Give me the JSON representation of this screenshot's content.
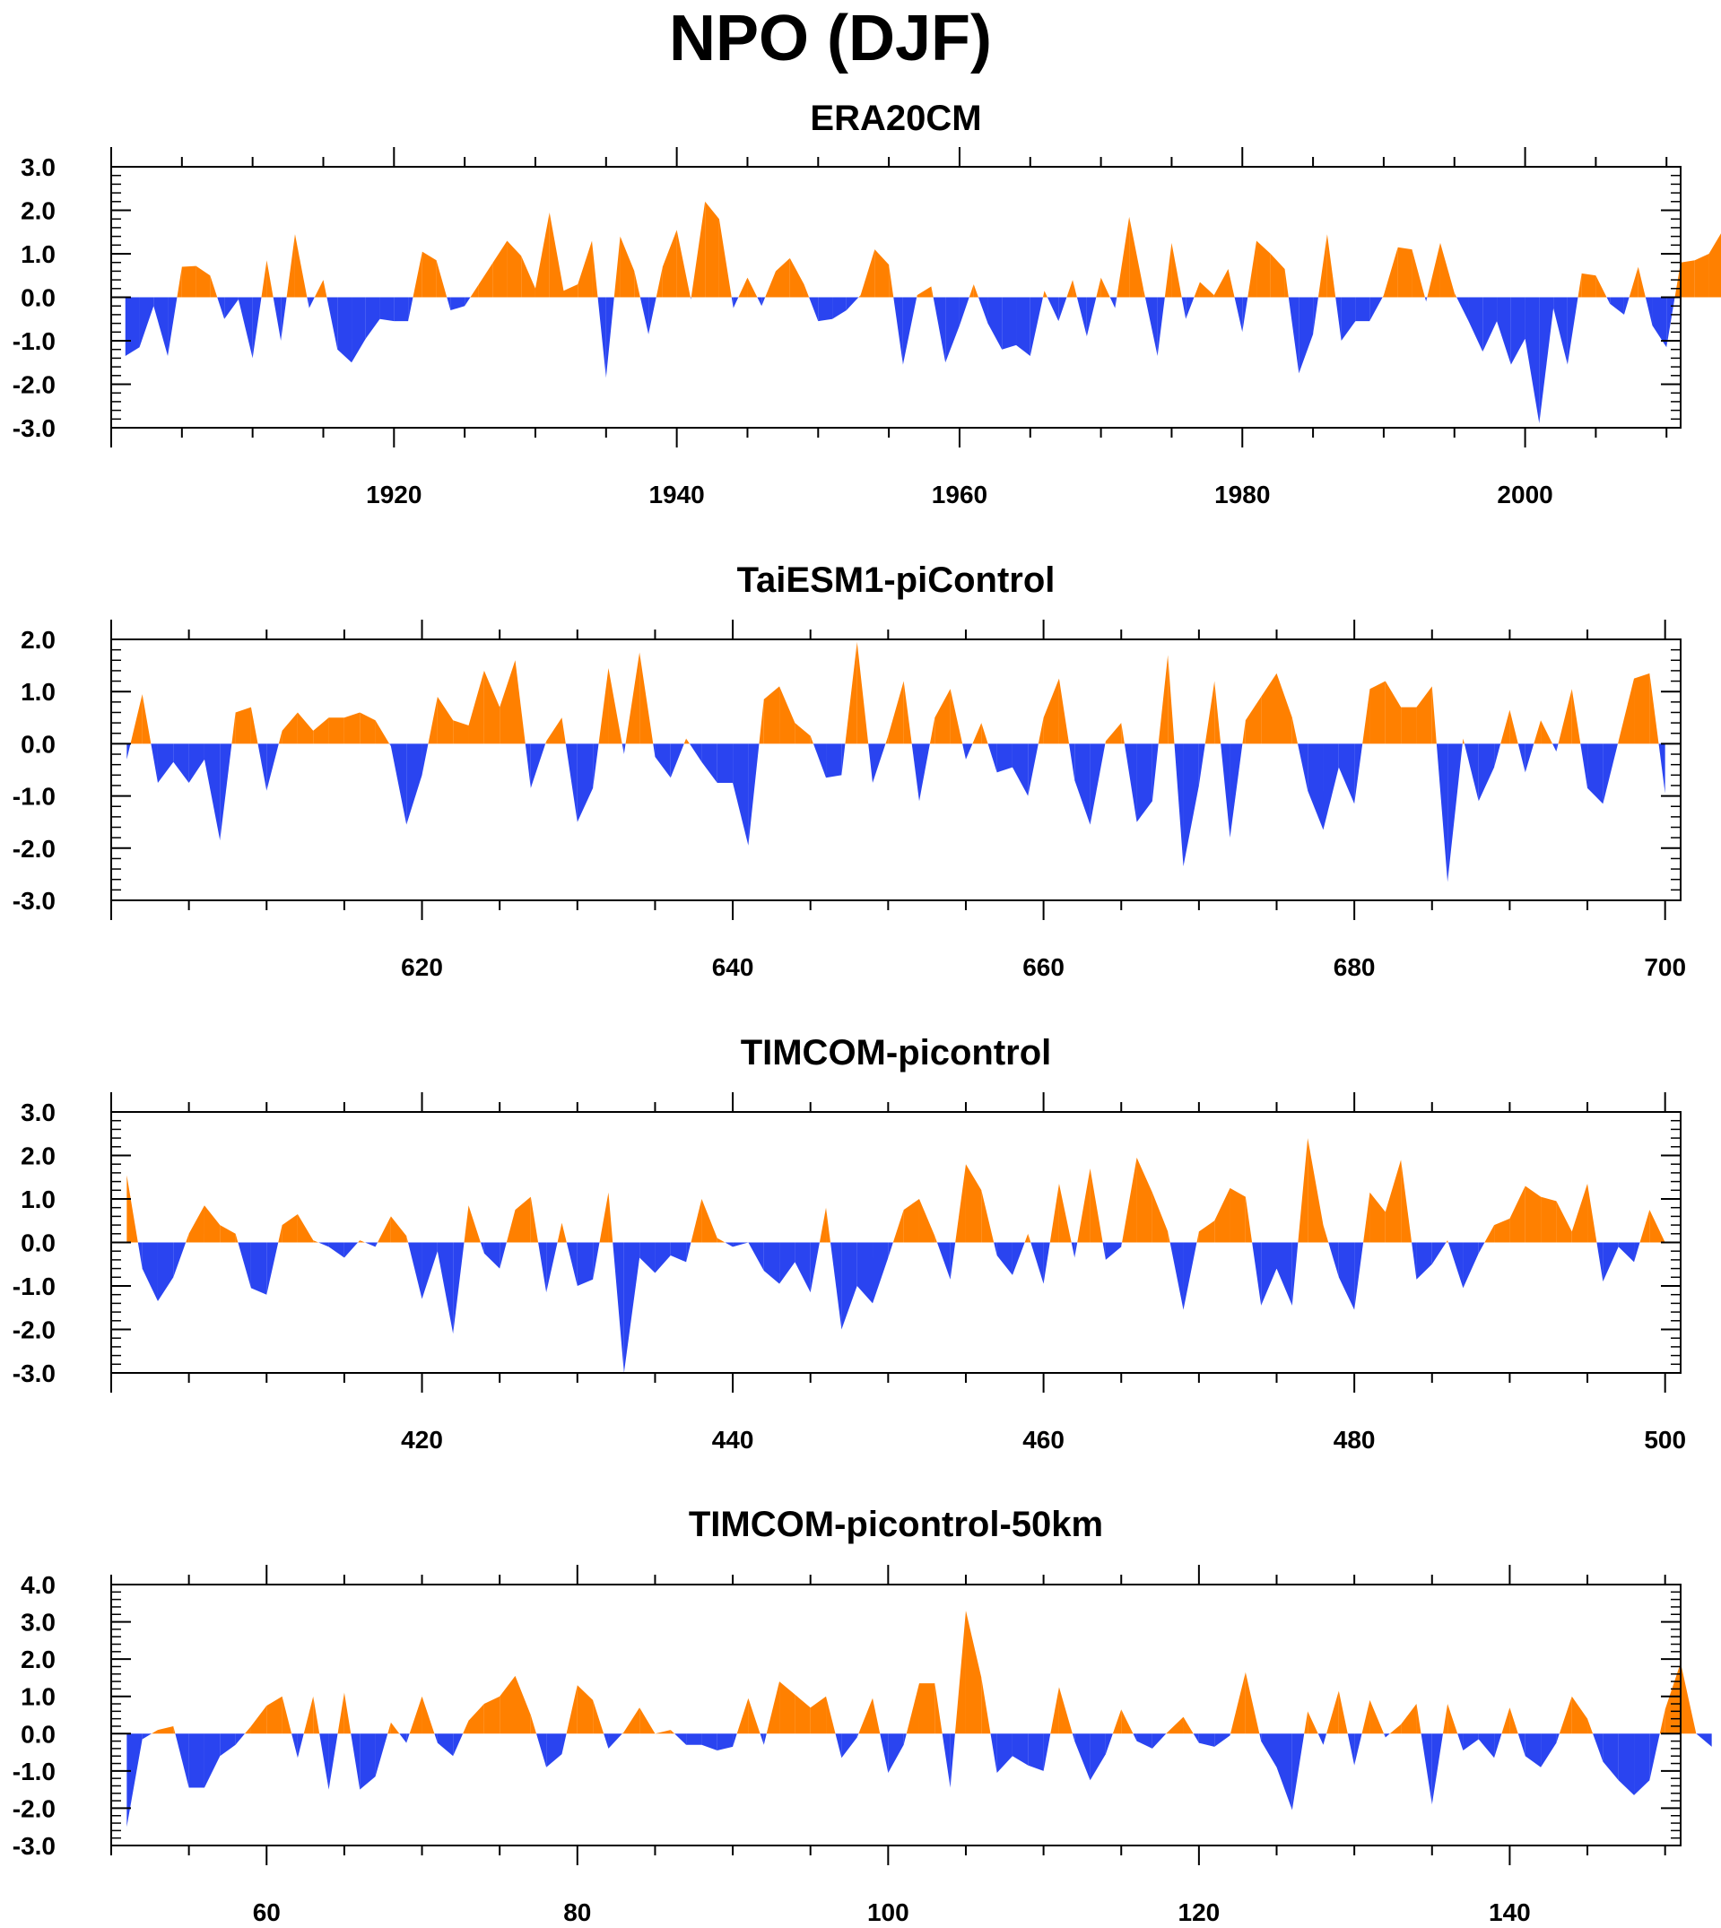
{
  "figure": {
    "title": "NPO (DJF)"
  },
  "colors": {
    "positive": "#ff8000",
    "negative": "#2a44f0",
    "axis": "#000000"
  },
  "chart_data": [
    {
      "type": "area",
      "title": "ERA20CM",
      "xlabel": "",
      "ylabel": "",
      "grid": false,
      "ylim": [
        -3.0,
        3.0
      ],
      "xlim": [
        1900,
        2011
      ],
      "yticks": [
        "3.0",
        "2.0",
        "1.0",
        "0.0",
        "-1.0",
        "-2.0",
        "-3.0"
      ],
      "yticks_values": [
        3,
        2,
        1,
        0,
        -1,
        -2,
        -3
      ],
      "xticks": [
        "1920",
        "1940",
        "1960",
        "1980",
        "2000"
      ],
      "xticks_values": [
        1920,
        1940,
        1960,
        1980,
        2000
      ],
      "x_start": 1901,
      "values": [
        -1.35,
        -1.15,
        -0.2,
        -1.35,
        0.7,
        0.72,
        0.5,
        -0.5,
        -0.05,
        -1.4,
        0.85,
        -1.0,
        1.45,
        -0.25,
        0.4,
        -1.2,
        -1.5,
        -0.95,
        -0.5,
        -0.55,
        -0.55,
        1.05,
        0.85,
        -0.3,
        -0.2,
        0.3,
        0.8,
        1.3,
        0.95,
        0.2,
        1.95,
        0.15,
        0.3,
        1.3,
        -1.85,
        1.4,
        0.6,
        -0.85,
        0.7,
        1.55,
        -0.05,
        2.2,
        1.8,
        -0.25,
        0.45,
        -0.2,
        0.6,
        0.9,
        0.3,
        -0.55,
        -0.5,
        -0.3,
        0.05,
        1.1,
        0.75,
        -1.55,
        0.05,
        0.25,
        -1.5,
        -0.65,
        0.3,
        -0.6,
        -1.2,
        -1.1,
        -1.35,
        0.15,
        -0.55,
        0.4,
        -0.9,
        0.45,
        -0.25,
        1.85,
        0.2,
        -1.35,
        1.25,
        -0.5,
        0.35,
        0.05,
        0.65,
        -0.8,
        1.3,
        1.0,
        0.65,
        -1.75,
        -0.85,
        1.45,
        -1.0,
        -0.55,
        -0.55,
        0.05,
        1.15,
        1.1,
        -0.1,
        1.25,
        0.1,
        -0.55,
        -1.25,
        -0.55,
        -1.55,
        -0.95,
        -2.9,
        -0.25,
        -1.55,
        0.55,
        0.5,
        -0.15,
        -0.4,
        0.7,
        -0.65,
        -1.15,
        0.8,
        0.85,
        1.0,
        1.55
      ]
    },
    {
      "type": "area",
      "title": "TaiESM1-piControl",
      "xlabel": "",
      "ylabel": "",
      "grid": false,
      "ylim": [
        -3.0,
        2.0
      ],
      "xlim": [
        600,
        701
      ],
      "yticks": [
        "2.0",
        "1.0",
        "0.0",
        "-1.0",
        "-2.0",
        "-3.0"
      ],
      "yticks_values": [
        2,
        1,
        0,
        -1,
        -2,
        -3
      ],
      "xticks": [
        "620",
        "640",
        "660",
        "680",
        "700"
      ],
      "xticks_values": [
        620,
        640,
        660,
        680,
        700
      ],
      "x_start": 601,
      "values": [
        -0.3,
        0.95,
        -0.75,
        -0.35,
        -0.75,
        -0.3,
        -1.85,
        0.6,
        0.7,
        -0.9,
        0.25,
        0.6,
        0.25,
        0.5,
        0.5,
        0.6,
        0.45,
        -0.05,
        -1.55,
        -0.6,
        0.9,
        0.45,
        0.35,
        1.4,
        0.7,
        1.6,
        -0.85,
        0.05,
        0.5,
        -1.5,
        -0.85,
        1.45,
        -0.2,
        1.75,
        -0.25,
        -0.65,
        0.1,
        -0.35,
        -0.75,
        -0.75,
        -1.95,
        0.85,
        1.1,
        0.4,
        0.15,
        -0.65,
        -0.6,
        1.95,
        -0.75,
        0.15,
        1.2,
        -1.1,
        0.5,
        1.05,
        -0.3,
        0.4,
        -0.55,
        -0.45,
        -1.0,
        0.5,
        1.25,
        -0.7,
        -1.55,
        0.05,
        0.4,
        -1.5,
        -1.1,
        1.7,
        -2.35,
        -0.8,
        1.2,
        -1.8,
        0.45,
        0.9,
        1.35,
        0.5,
        -0.9,
        -1.65,
        -0.45,
        -1.15,
        1.05,
        1.2,
        0.7,
        0.7,
        1.1,
        -2.65,
        0.1,
        -1.1,
        -0.45,
        0.65,
        -0.55,
        0.45,
        -0.15,
        1.05,
        -0.85,
        -1.15,
        0.05,
        1.25,
        1.35,
        -0.95
      ]
    },
    {
      "type": "area",
      "title": "TIMCOM-picontrol",
      "xlabel": "",
      "ylabel": "",
      "grid": false,
      "ylim": [
        -3.0,
        3.0
      ],
      "xlim": [
        400,
        501
      ],
      "yticks": [
        "3.0",
        "2.0",
        "1.0",
        "0.0",
        "-1.0",
        "-2.0",
        "-3.0"
      ],
      "yticks_values": [
        3,
        2,
        1,
        0,
        -1,
        -2,
        -3
      ],
      "xticks": [
        "420",
        "440",
        "460",
        "480",
        "500"
      ],
      "xticks_values": [
        420,
        440,
        460,
        480,
        500
      ],
      "x_start": 401,
      "values": [
        1.55,
        -0.6,
        -1.35,
        -0.8,
        0.2,
        0.85,
        0.4,
        0.2,
        -1.05,
        -1.2,
        0.4,
        0.65,
        0.05,
        -0.1,
        -0.35,
        0.05,
        -0.1,
        0.6,
        0.15,
        -1.3,
        -0.2,
        -2.1,
        0.85,
        -0.25,
        -0.6,
        0.75,
        1.05,
        -1.15,
        0.45,
        -1.0,
        -0.85,
        1.15,
        -3.0,
        -0.35,
        -0.7,
        -0.3,
        -0.45,
        1.0,
        0.1,
        -0.1,
        0.0,
        -0.65,
        -0.95,
        -0.45,
        -1.15,
        0.8,
        -2.0,
        -1.0,
        -1.4,
        -0.35,
        0.75,
        1.0,
        0.15,
        -0.85,
        1.8,
        1.2,
        -0.3,
        -0.75,
        0.2,
        -0.95,
        1.35,
        -0.35,
        1.7,
        -0.4,
        -0.1,
        1.95,
        1.15,
        0.25,
        -1.55,
        0.25,
        0.5,
        1.25,
        1.05,
        -1.45,
        -0.6,
        -1.45,
        2.4,
        0.4,
        -0.8,
        -1.55,
        1.15,
        0.7,
        1.9,
        -0.85,
        -0.5,
        0.05,
        -1.05,
        -0.25,
        0.4,
        0.55,
        1.3,
        1.05,
        0.95,
        0.25,
        1.35,
        -0.9,
        -0.1,
        -0.45,
        0.75,
        0.0
      ]
    },
    {
      "type": "area",
      "title": "TIMCOM-picontrol-50km",
      "xlabel": "",
      "ylabel": "",
      "grid": false,
      "ylim": [
        -3.0,
        4.0
      ],
      "xlim": [
        50,
        151
      ],
      "yticks": [
        "4.0",
        "3.0",
        "2.0",
        "1.0",
        "0.0",
        "-1.0",
        "-2.0",
        "-3.0"
      ],
      "yticks_values": [
        4,
        3,
        2,
        1,
        0,
        -1,
        -2,
        -3
      ],
      "xticks": [
        "60",
        "80",
        "100",
        "120",
        "140"
      ],
      "xticks_values": [
        60,
        80,
        100,
        120,
        140
      ],
      "x_start": 51,
      "values": [
        -2.5,
        -0.15,
        0.1,
        0.2,
        -1.45,
        -1.45,
        -0.6,
        -0.3,
        0.2,
        0.75,
        1.0,
        -0.65,
        1.0,
        -1.5,
        1.1,
        -1.5,
        -1.15,
        0.3,
        -0.25,
        1.0,
        -0.25,
        -0.6,
        0.35,
        0.8,
        1.0,
        1.55,
        0.5,
        -0.9,
        -0.55,
        1.3,
        0.9,
        -0.4,
        0.05,
        0.7,
        0.0,
        0.1,
        -0.3,
        -0.3,
        -0.45,
        -0.35,
        0.95,
        -0.3,
        1.4,
        1.05,
        0.7,
        1.0,
        -0.65,
        -0.1,
        0.95,
        -1.05,
        -0.3,
        1.35,
        1.35,
        -1.45,
        3.3,
        1.5,
        -1.05,
        -0.6,
        -0.85,
        -1.0,
        1.25,
        -0.2,
        -1.25,
        -0.55,
        0.65,
        -0.2,
        -0.4,
        0.05,
        0.45,
        -0.25,
        -0.35,
        -0.05,
        1.65,
        -0.2,
        -0.9,
        -2.05,
        0.6,
        -0.3,
        1.15,
        -0.85,
        0.9,
        -0.1,
        0.25,
        0.8,
        -1.9,
        0.8,
        -0.45,
        -0.15,
        -0.65,
        0.7,
        -0.6,
        -0.9,
        -0.25,
        1.0,
        0.4,
        -0.75,
        -1.25,
        -1.65,
        -1.25,
        0.65,
        1.9,
        0.0,
        -0.35
      ]
    }
  ]
}
